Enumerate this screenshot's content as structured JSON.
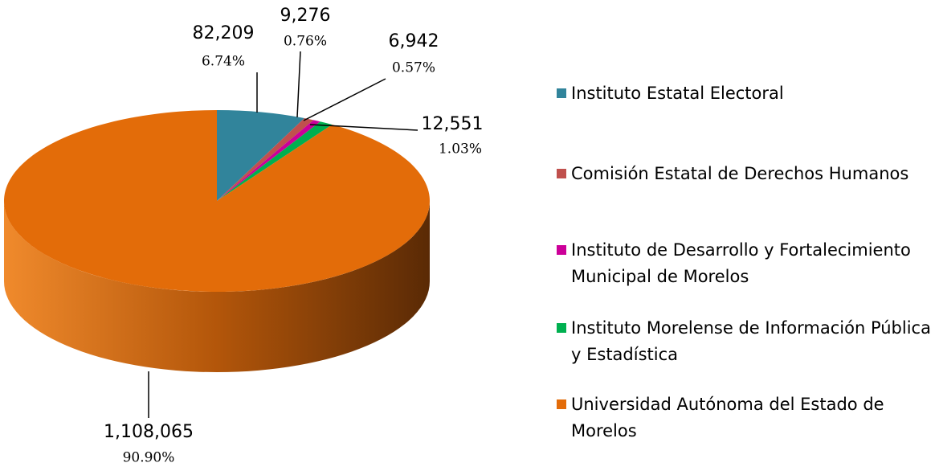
{
  "chart_data": {
    "type": "pie",
    "categories": [
      "Instituto Estatal Electoral",
      "Comisión Estatal de Derechos Humanos",
      "Instituto de Desarrollo y Fortalecimiento Municipal de  Morelos",
      "Instituto Morelense de Información Pública y Estadística",
      "Universidad Autónoma del Estado de Morelos"
    ],
    "values": [
      82209,
      9276,
      6942,
      12551,
      1108065
    ],
    "value_labels": [
      "82,209",
      "9,276",
      "6,942",
      "12,551",
      "1,108,065"
    ],
    "percents": [
      6.74,
      0.76,
      0.57,
      1.03,
      90.9
    ],
    "percent_labels": [
      "6.74%",
      "0.76%",
      "0.57%",
      "1.03%",
      "90.90%"
    ],
    "colors": [
      "#31849b",
      "#c0504d",
      "#cc0099",
      "#00b050",
      "#e36c09"
    ],
    "legend": "right"
  }
}
